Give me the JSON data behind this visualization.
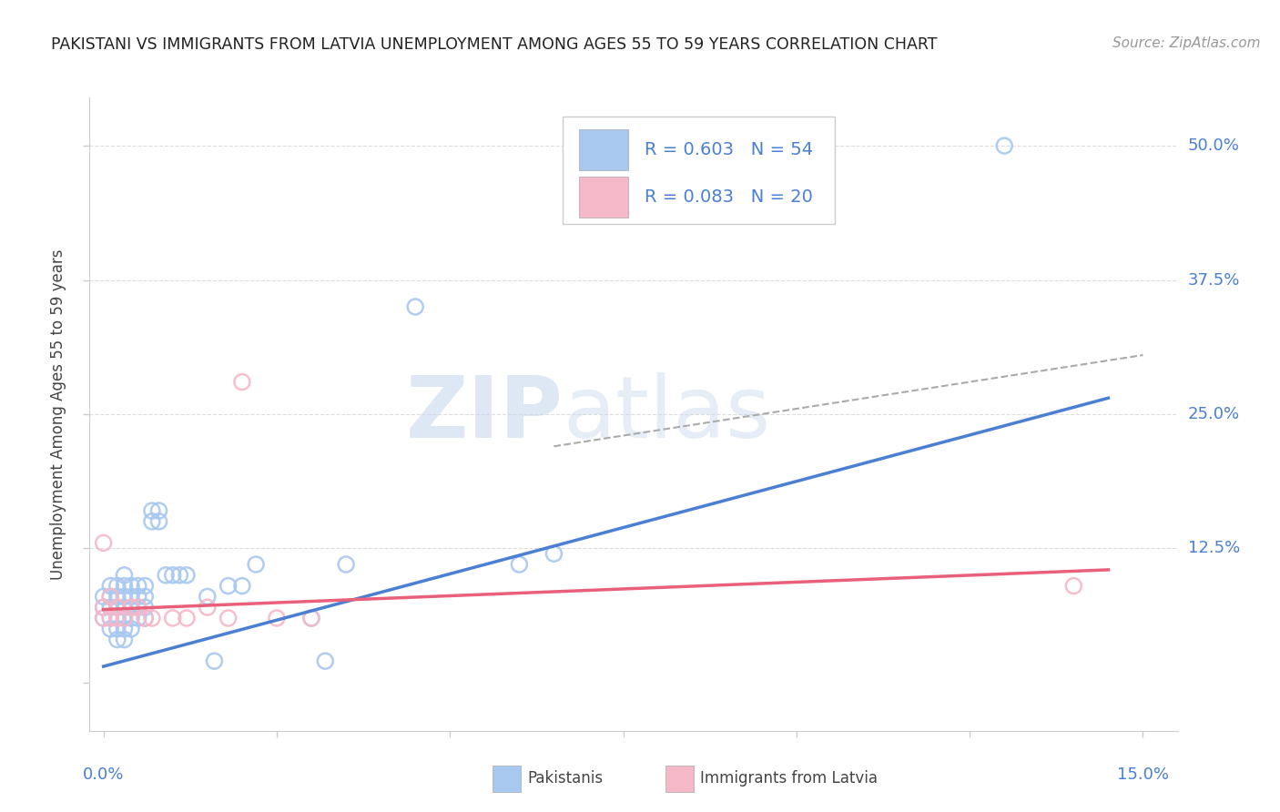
{
  "title": "PAKISTANI VS IMMIGRANTS FROM LATVIA UNEMPLOYMENT AMONG AGES 55 TO 59 YEARS CORRELATION CHART",
  "source": "Source: ZipAtlas.com",
  "ylabel": "Unemployment Among Ages 55 to 59 years",
  "xmin": -0.002,
  "xmax": 0.155,
  "ymin": -0.045,
  "ymax": 0.545,
  "blue_color": "#a8c8f0",
  "pink_color": "#f5b8c8",
  "blue_line_color": "#4a7fd4",
  "pink_line_color": "#e8607a",
  "dashed_line_color": "#aaaaaa",
  "legend_blue_label": "R = 0.603   N = 54",
  "legend_pink_label": "R = 0.083   N = 20",
  "blue_scatter_x": [
    0.0,
    0.0,
    0.0,
    0.001,
    0.001,
    0.001,
    0.001,
    0.001,
    0.002,
    0.002,
    0.002,
    0.002,
    0.002,
    0.002,
    0.003,
    0.003,
    0.003,
    0.003,
    0.003,
    0.003,
    0.003,
    0.004,
    0.004,
    0.004,
    0.004,
    0.004,
    0.005,
    0.005,
    0.005,
    0.005,
    0.006,
    0.006,
    0.006,
    0.006,
    0.007,
    0.007,
    0.008,
    0.008,
    0.009,
    0.01,
    0.011,
    0.012,
    0.015,
    0.016,
    0.018,
    0.02,
    0.022,
    0.03,
    0.032,
    0.035,
    0.045,
    0.06,
    0.065,
    0.13
  ],
  "blue_scatter_y": [
    0.06,
    0.07,
    0.08,
    0.05,
    0.06,
    0.07,
    0.08,
    0.09,
    0.04,
    0.05,
    0.06,
    0.07,
    0.08,
    0.09,
    0.04,
    0.05,
    0.06,
    0.07,
    0.08,
    0.09,
    0.1,
    0.05,
    0.06,
    0.07,
    0.08,
    0.09,
    0.06,
    0.07,
    0.08,
    0.09,
    0.06,
    0.07,
    0.08,
    0.09,
    0.15,
    0.16,
    0.15,
    0.16,
    0.1,
    0.1,
    0.1,
    0.1,
    0.08,
    0.02,
    0.09,
    0.09,
    0.11,
    0.06,
    0.02,
    0.11,
    0.35,
    0.11,
    0.12,
    0.5
  ],
  "pink_scatter_x": [
    0.0,
    0.0,
    0.0,
    0.001,
    0.001,
    0.002,
    0.002,
    0.003,
    0.004,
    0.005,
    0.006,
    0.007,
    0.01,
    0.012,
    0.015,
    0.018,
    0.02,
    0.025,
    0.03,
    0.14
  ],
  "pink_scatter_y": [
    0.06,
    0.07,
    0.13,
    0.06,
    0.08,
    0.06,
    0.07,
    0.06,
    0.07,
    0.07,
    0.06,
    0.06,
    0.06,
    0.06,
    0.07,
    0.06,
    0.28,
    0.06,
    0.06,
    0.09
  ],
  "blue_trend_x": [
    0.0,
    0.145
  ],
  "blue_trend_y": [
    0.015,
    0.265
  ],
  "pink_trend_x": [
    0.0,
    0.145
  ],
  "pink_trend_y": [
    0.068,
    0.105
  ],
  "dashed_trend_x": [
    0.065,
    0.15
  ],
  "dashed_trend_y": [
    0.22,
    0.305
  ],
  "ytick_vals": [
    0.0,
    0.125,
    0.25,
    0.375,
    0.5
  ],
  "ytick_labels": [
    "",
    "12.5%",
    "25.0%",
    "37.5%",
    "50.0%"
  ],
  "xtick_vals": [
    0.0,
    0.025,
    0.05,
    0.075,
    0.1,
    0.125,
    0.15
  ],
  "grid_color": "#dddddd",
  "background_color": "#ffffff",
  "watermark_zip": "ZIP",
  "watermark_atlas": "atlas",
  "bottom_label_pakistanis": "Pakistanis",
  "bottom_label_immigrants": "Immigrants from Latvia"
}
